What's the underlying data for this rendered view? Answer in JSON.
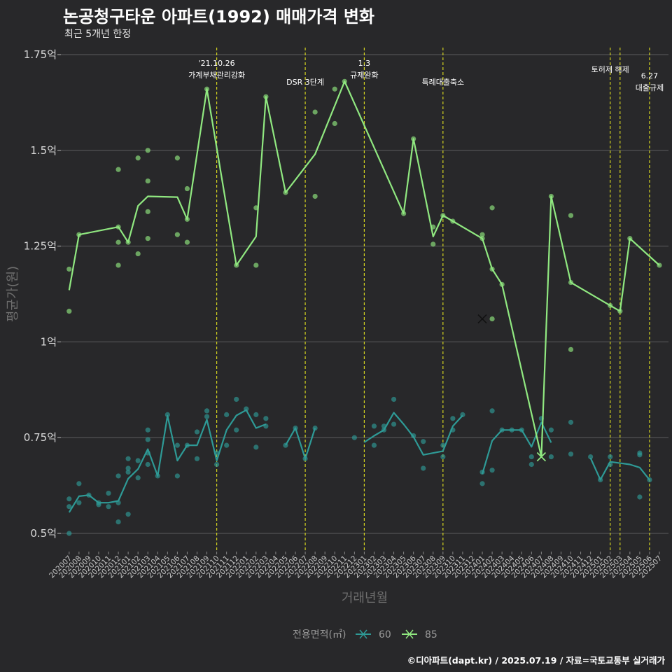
{
  "title": "논공청구타운 아파트(1992) 매매가격 변화",
  "subtitle": "최근 5개년 한정",
  "caption": "©디아파트(dapt.kr) / 2025.07.19 / 자료=국토교통부 실거래가",
  "colors": {
    "background": "#28282a",
    "grid": "#5c5c5e",
    "event_line": "#d4d420",
    "series_60": "#2e9a96",
    "series_85": "#90e880"
  },
  "chart_data": {
    "type": "line",
    "xlabel": "거래년월",
    "ylabel": "평균가(원)",
    "yticks": [
      {
        "value": 0.5,
        "label": "0.5억"
      },
      {
        "value": 0.75,
        "label": "0.75억"
      },
      {
        "value": 1.0,
        "label": "1억"
      },
      {
        "value": 1.25,
        "label": "1.25억"
      },
      {
        "value": 1.5,
        "label": "1.5억"
      },
      {
        "value": 1.75,
        "label": "1.75억"
      }
    ],
    "ylim": [
      0.45,
      1.77
    ],
    "grid": true,
    "legend": {
      "title": "전용면적(㎡)",
      "position": "bottom"
    },
    "categories": [
      "202007",
      "202008",
      "202009",
      "202010",
      "202011",
      "202012",
      "202101",
      "202102",
      "202103",
      "202104",
      "202105",
      "202106",
      "202107",
      "202108",
      "202109",
      "202110",
      "202111",
      "202112",
      "202201",
      "202202",
      "202203",
      "202204",
      "202205",
      "202206",
      "202207",
      "202208",
      "202209",
      "202210",
      "202211",
      "202212",
      "202301",
      "202302",
      "202303",
      "202304",
      "202305",
      "202306",
      "202307",
      "202308",
      "202309",
      "202310",
      "202311",
      "202312",
      "202401",
      "202402",
      "202403",
      "202404",
      "202405",
      "202406",
      "202407",
      "202408",
      "202409",
      "202410",
      "202411",
      "202412",
      "202501",
      "202502",
      "202503",
      "202504",
      "202505",
      "202506",
      "202507"
    ],
    "events": [
      {
        "x": "202110",
        "lines": [
          "'21.10.26",
          "가계부채관리강화"
        ]
      },
      {
        "x": "202207",
        "lines": [
          "DSR 3단계"
        ]
      },
      {
        "x": "202301",
        "lines": [
          "1.3",
          "규제완화"
        ]
      },
      {
        "x": "202309",
        "lines": [
          "특례대출축소"
        ]
      },
      {
        "x": "202502",
        "lines": [
          "토허제 해제"
        ]
      },
      {
        "x": "202503",
        "lines": [
          ""
        ]
      },
      {
        "x": "202506",
        "lines": [
          "6.27",
          "대출규제"
        ]
      }
    ],
    "series": [
      {
        "name": "60",
        "line": [
          [
            "202007",
            0.555
          ],
          [
            "202008",
            0.597
          ],
          [
            "202009",
            0.6
          ],
          [
            "202010",
            0.58
          ],
          [
            "202011",
            0.58
          ],
          [
            "202012",
            0.585
          ],
          [
            "202101",
            0.643
          ],
          [
            "202102",
            0.668
          ],
          [
            "202103",
            0.72
          ],
          [
            "202104",
            0.65
          ],
          [
            "202105",
            0.807
          ],
          [
            "202106",
            0.69
          ],
          [
            "202107",
            0.73
          ],
          [
            "202108",
            0.73
          ],
          [
            "202109",
            0.797
          ],
          [
            "202110",
            0.69
          ],
          [
            "202111",
            0.77
          ],
          [
            "202112",
            0.808
          ],
          [
            "202201",
            0.822
          ],
          [
            "202202",
            0.775
          ],
          [
            "202203",
            0.785
          ],
          null,
          [
            "202205",
            0.73
          ],
          [
            "202206",
            0.775
          ],
          [
            "202207",
            0.695
          ],
          [
            "202208",
            0.775
          ],
          null,
          [
            "202301",
            0.738
          ],
          [
            "202302",
            0.755
          ],
          [
            "202303",
            0.77
          ],
          [
            "202304",
            0.815
          ],
          [
            "202305",
            0.785
          ],
          [
            "202306",
            0.752
          ],
          [
            "202307",
            0.705
          ],
          [
            "202309",
            0.715
          ],
          [
            "202310",
            0.78
          ],
          [
            "202311",
            0.808
          ],
          null,
          [
            "202401",
            0.655
          ],
          [
            "202402",
            0.742
          ],
          [
            "202403",
            0.77
          ],
          [
            "202404",
            0.77
          ],
          [
            "202405",
            0.77
          ],
          [
            "202406",
            0.726
          ],
          [
            "202407",
            0.79
          ],
          [
            "202408",
            0.737
          ],
          null,
          [
            "202410",
            0.707
          ],
          null,
          [
            "202412",
            0.697
          ],
          [
            "202501",
            0.64
          ],
          [
            "202502",
            0.687
          ],
          [
            "202504",
            0.68
          ],
          [
            "202505",
            0.672
          ],
          [
            "202506",
            0.64
          ]
        ],
        "points": [
          [
            "202007",
            0.59
          ],
          [
            "202007",
            0.57
          ],
          [
            "202007",
            0.5
          ],
          [
            "202008",
            0.63
          ],
          [
            "202008",
            0.58
          ],
          [
            "202009",
            0.6
          ],
          [
            "202010",
            0.58
          ],
          [
            "202010",
            0.575
          ],
          [
            "202011",
            0.57
          ],
          [
            "202011",
            0.605
          ],
          [
            "202012",
            0.53
          ],
          [
            "202012",
            0.58
          ],
          [
            "202012",
            0.65
          ],
          [
            "202101",
            0.67
          ],
          [
            "202101",
            0.55
          ],
          [
            "202101",
            0.695
          ],
          [
            "202101",
            0.66
          ],
          [
            "202102",
            0.69
          ],
          [
            "202102",
            0.645
          ],
          [
            "202103",
            0.77
          ],
          [
            "202103",
            0.745
          ],
          [
            "202103",
            0.71
          ],
          [
            "202103",
            0.68
          ],
          [
            "202104",
            0.65
          ],
          [
            "202105",
            0.81
          ],
          [
            "202106",
            0.73
          ],
          [
            "202106",
            0.65
          ],
          [
            "202107",
            0.73
          ],
          [
            "202108",
            0.765
          ],
          [
            "202108",
            0.695
          ],
          [
            "202109",
            0.82
          ],
          [
            "202109",
            0.805
          ],
          [
            "202110",
            0.68
          ],
          [
            "202110",
            0.71
          ],
          [
            "202111",
            0.81
          ],
          [
            "202111",
            0.73
          ],
          [
            "202112",
            0.85
          ],
          [
            "202112",
            0.77
          ],
          [
            "202201",
            0.825
          ],
          [
            "202202",
            0.81
          ],
          [
            "202202",
            0.725
          ],
          [
            "202203",
            0.8
          ],
          [
            "202203",
            0.78
          ],
          [
            "202205",
            0.73
          ],
          [
            "202206",
            0.775
          ],
          [
            "202207",
            0.695
          ],
          [
            "202208",
            0.775
          ],
          [
            "202212",
            0.75
          ],
          [
            "202302",
            0.78
          ],
          [
            "202302",
            0.73
          ],
          [
            "202303",
            0.78
          ],
          [
            "202303",
            0.77
          ],
          [
            "202304",
            0.85
          ],
          [
            "202304",
            0.785
          ],
          [
            "202306",
            0.755
          ],
          [
            "202307",
            0.74
          ],
          [
            "202307",
            0.67
          ],
          [
            "202309",
            0.73
          ],
          [
            "202309",
            0.7
          ],
          [
            "202310",
            0.8
          ],
          [
            "202310",
            0.77
          ],
          [
            "202311",
            0.81
          ],
          [
            "202401",
            0.66
          ],
          [
            "202401",
            0.63
          ],
          [
            "202402",
            0.82
          ],
          [
            "202402",
            0.665
          ],
          [
            "202403",
            0.77
          ],
          [
            "202404",
            0.77
          ],
          [
            "202405",
            0.77
          ],
          [
            "202406",
            0.7
          ],
          [
            "202406",
            0.68
          ],
          [
            "202407",
            0.8
          ],
          [
            "202408",
            0.77
          ],
          [
            "202408",
            0.7
          ],
          [
            "202410",
            0.79
          ],
          [
            "202410",
            0.707
          ],
          [
            "202412",
            0.7
          ],
          [
            "202501",
            0.64
          ],
          [
            "202502",
            0.7
          ],
          [
            "202502",
            0.68
          ],
          [
            "202505",
            0.71
          ],
          [
            "202505",
            0.705
          ],
          [
            "202505",
            0.595
          ],
          [
            "202506",
            0.64
          ]
        ],
        "x_marks": [
          [
            "202407",
            0.7
          ]
        ]
      },
      {
        "name": "85",
        "line": [
          [
            "202007",
            1.135
          ],
          [
            "202008",
            1.28
          ],
          [
            "202012",
            1.3
          ],
          [
            "202101",
            1.26
          ],
          [
            "202102",
            1.355
          ],
          [
            "202103",
            1.38
          ],
          [
            "202106",
            1.378
          ],
          [
            "202107",
            1.32
          ],
          [
            "202109",
            1.66
          ],
          [
            "202112",
            1.2
          ],
          [
            "202202",
            1.275
          ],
          [
            "202203",
            1.64
          ],
          [
            "202205",
            1.39
          ],
          [
            "202208",
            1.49
          ],
          [
            "202211",
            1.68
          ],
          [
            "202305",
            1.335
          ],
          [
            "202306",
            1.53
          ],
          [
            "202308",
            1.275
          ],
          [
            "202309",
            1.33
          ],
          [
            "202310",
            1.315
          ],
          [
            "202401",
            1.27
          ],
          [
            "202402",
            1.19
          ],
          [
            "202403",
            1.15
          ],
          [
            "202407",
            0.7
          ],
          [
            "202408",
            1.38
          ],
          [
            "202410",
            1.155
          ],
          [
            "202502",
            1.095
          ],
          [
            "202503",
            1.08
          ],
          [
            "202504",
            1.27
          ],
          [
            "202507",
            1.2
          ]
        ],
        "points": [
          [
            "202007",
            1.19
          ],
          [
            "202007",
            1.08
          ],
          [
            "202008",
            1.28
          ],
          [
            "202012",
            1.3
          ],
          [
            "202012",
            1.26
          ],
          [
            "202012",
            1.2
          ],
          [
            "202012",
            1.45
          ],
          [
            "202101",
            1.26
          ],
          [
            "202102",
            1.48
          ],
          [
            "202102",
            1.23
          ],
          [
            "202103",
            1.5
          ],
          [
            "202103",
            1.42
          ],
          [
            "202103",
            1.34
          ],
          [
            "202103",
            1.27
          ],
          [
            "202106",
            1.48
          ],
          [
            "202106",
            1.28
          ],
          [
            "202107",
            1.4
          ],
          [
            "202107",
            1.32
          ],
          [
            "202107",
            1.26
          ],
          [
            "202109",
            1.66
          ],
          [
            "202112",
            1.2
          ],
          [
            "202202",
            1.35
          ],
          [
            "202202",
            1.2
          ],
          [
            "202203",
            1.64
          ],
          [
            "202205",
            1.39
          ],
          [
            "202208",
            1.6
          ],
          [
            "202208",
            1.38
          ],
          [
            "202210",
            1.57
          ],
          [
            "202210",
            1.66
          ],
          [
            "202211",
            1.68
          ],
          [
            "202305",
            1.335
          ],
          [
            "202306",
            1.53
          ],
          [
            "202308",
            1.3
          ],
          [
            "202308",
            1.255
          ],
          [
            "202309",
            1.33
          ],
          [
            "202310",
            1.315
          ],
          [
            "202401",
            1.28
          ],
          [
            "202401",
            1.27
          ],
          [
            "202402",
            1.35
          ],
          [
            "202402",
            1.19
          ],
          [
            "202402",
            1.06
          ],
          [
            "202403",
            1.15
          ],
          [
            "202408",
            1.38
          ],
          [
            "202410",
            1.33
          ],
          [
            "202410",
            0.98
          ],
          [
            "202410",
            1.155
          ],
          [
            "202502",
            1.095
          ],
          [
            "202503",
            1.08
          ],
          [
            "202504",
            1.27
          ],
          [
            "202507",
            1.2
          ]
        ],
        "x_marks": [
          [
            "202401",
            1.06
          ],
          [
            "202407",
            0.7
          ]
        ]
      }
    ]
  }
}
